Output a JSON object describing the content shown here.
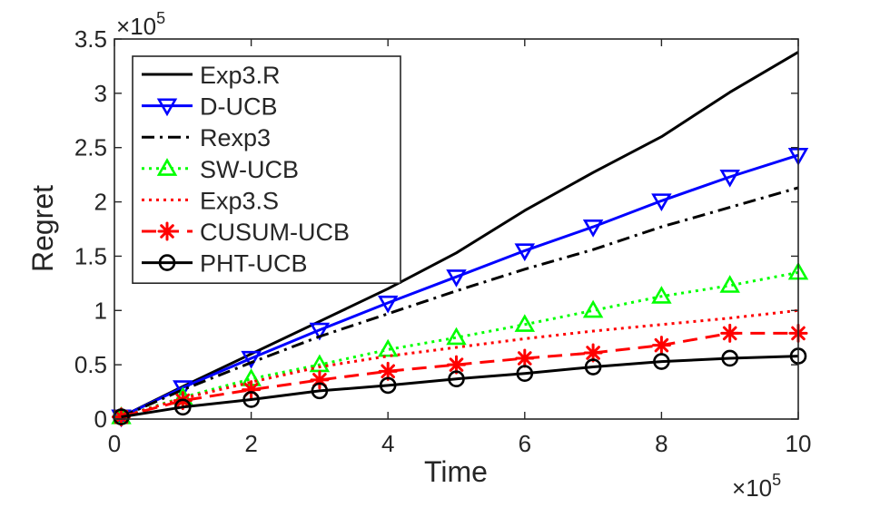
{
  "chart_data": {
    "type": "line",
    "xlabel": "Time",
    "ylabel": "Regret",
    "xlim": [
      0,
      10
    ],
    "ylim": [
      0,
      3.5
    ],
    "x_multiplier": "10",
    "x_multiplier_exp": "5",
    "y_multiplier": "10",
    "y_multiplier_exp": "5",
    "xticks": [
      0,
      2,
      4,
      6,
      8,
      10
    ],
    "xtick_labels": [
      "0",
      "2",
      "4",
      "6",
      "8",
      "10"
    ],
    "yticks": [
      0,
      0.5,
      1,
      1.5,
      2,
      2.5,
      3,
      3.5
    ],
    "ytick_labels": [
      "0",
      "0.5",
      "1",
      "1.5",
      "2",
      "2.5",
      "3",
      "3.5"
    ],
    "legend_position": "top-left",
    "series": [
      {
        "name": "Exp3.R",
        "color": "#000000",
        "dash": "solid",
        "marker": "none",
        "x": [
          0.1,
          1,
          2,
          3,
          4,
          5,
          6,
          7,
          8,
          9,
          10
        ],
        "y": [
          0.02,
          0.3,
          0.6,
          0.9,
          1.2,
          1.53,
          1.92,
          2.27,
          2.6,
          3.01,
          3.38
        ]
      },
      {
        "name": "D-UCB",
        "color": "#0000ff",
        "dash": "solid",
        "marker": "triangle-down",
        "x": [
          0.1,
          1,
          2,
          3,
          4,
          5,
          6,
          7,
          8,
          9,
          10
        ],
        "y": [
          0.02,
          0.29,
          0.56,
          0.82,
          1.07,
          1.31,
          1.55,
          1.77,
          2.01,
          2.23,
          2.43
        ]
      },
      {
        "name": "Rexp3",
        "color": "#000000",
        "dash": "dashdot",
        "marker": "none",
        "x": [
          0.1,
          1,
          2,
          3,
          4,
          5,
          6,
          7,
          8,
          9,
          10
        ],
        "y": [
          0.02,
          0.27,
          0.52,
          0.76,
          0.97,
          1.18,
          1.38,
          1.56,
          1.77,
          1.95,
          2.13
        ]
      },
      {
        "name": "SW-UCB",
        "color": "#00ff00",
        "dash": "dotted",
        "marker": "triangle-up",
        "x": [
          0.1,
          1,
          2,
          3,
          4,
          5,
          6,
          7,
          8,
          9,
          10
        ],
        "y": [
          0.02,
          0.2,
          0.37,
          0.5,
          0.64,
          0.75,
          0.87,
          1.0,
          1.13,
          1.23,
          1.35
        ]
      },
      {
        "name": "Exp3.S",
        "color": "#ff0000",
        "dash": "dotted",
        "marker": "none",
        "x": [
          0.1,
          1,
          2,
          3,
          4,
          5,
          6,
          7,
          8,
          9,
          10
        ],
        "y": [
          0.02,
          0.19,
          0.34,
          0.48,
          0.58,
          0.66,
          0.74,
          0.81,
          0.87,
          0.93,
          1.0
        ]
      },
      {
        "name": "CUSUM-UCB",
        "color": "#ff0000",
        "dash": "dashed",
        "marker": "asterisk",
        "x": [
          0.1,
          1,
          2,
          3,
          4,
          5,
          6,
          7,
          8,
          9,
          10
        ],
        "y": [
          0.02,
          0.17,
          0.27,
          0.36,
          0.44,
          0.5,
          0.56,
          0.61,
          0.68,
          0.79,
          0.79
        ]
      },
      {
        "name": "PHT-UCB",
        "color": "#000000",
        "dash": "solid",
        "marker": "circle",
        "x": [
          0.1,
          1,
          2,
          3,
          4,
          5,
          6,
          7,
          8,
          9,
          10
        ],
        "y": [
          0.02,
          0.11,
          0.18,
          0.26,
          0.31,
          0.37,
          0.42,
          0.48,
          0.53,
          0.56,
          0.58
        ]
      }
    ]
  }
}
